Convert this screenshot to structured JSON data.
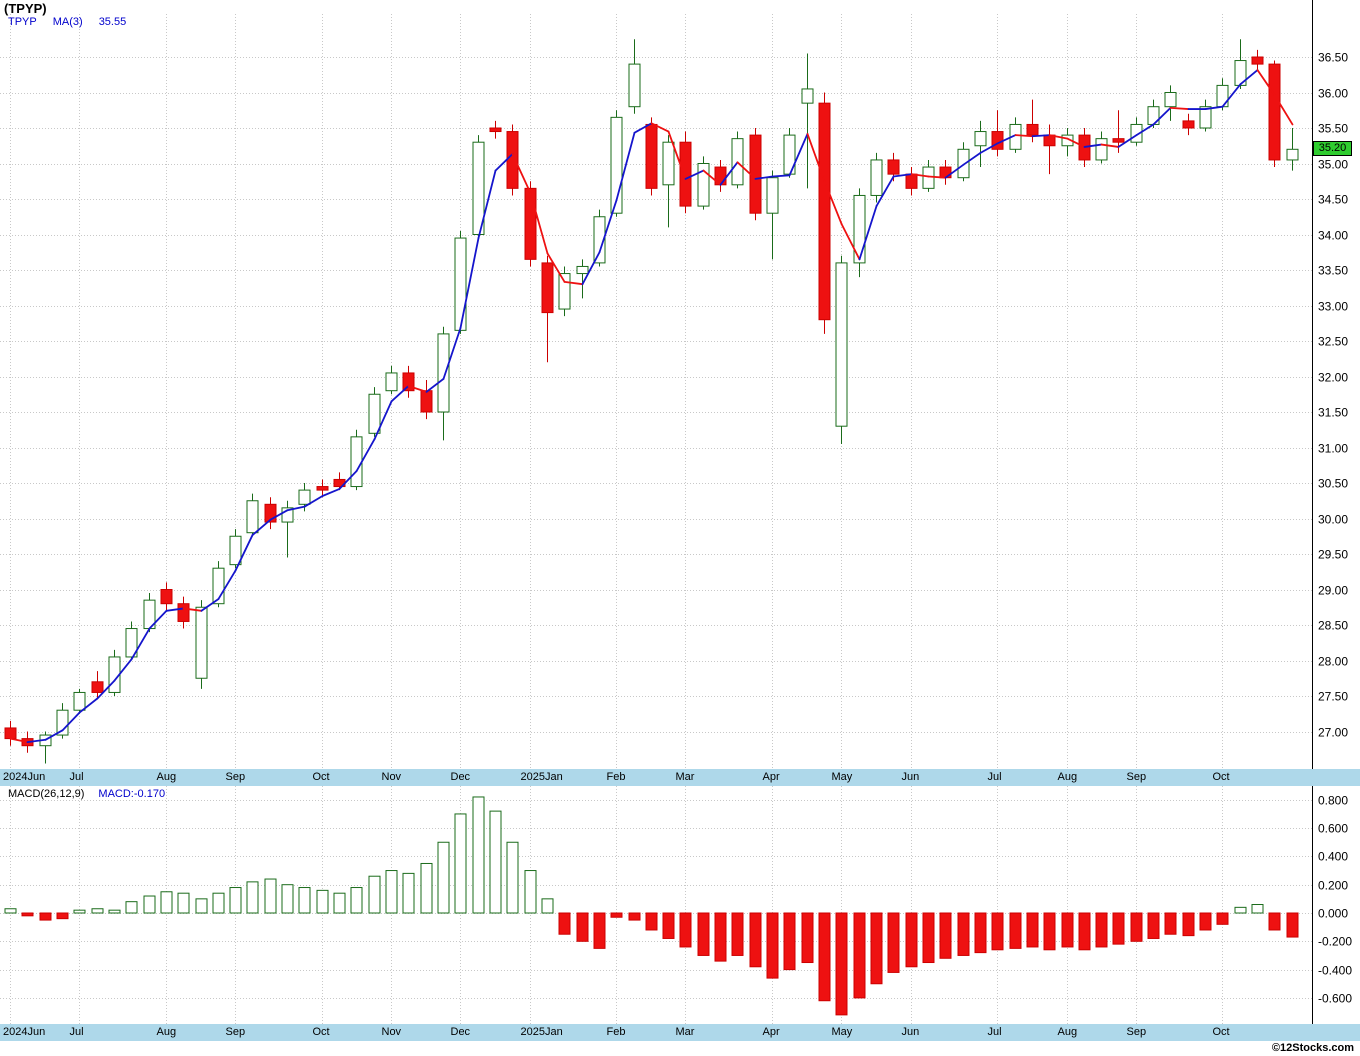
{
  "header": {
    "title": "(TPYP)",
    "symbol": "TPYP",
    "ma_label": "MA(3)",
    "ma_value": "35.55"
  },
  "macd_panel": {
    "label": "MACD(26,12,9)",
    "current": "MACD:-0.170"
  },
  "price_badge": {
    "value": "35.20",
    "color": "#2fcc2f"
  },
  "footer": {
    "credit": "©12Stocks.com"
  },
  "colors": {
    "up": "#1a6b1a",
    "down": "#ee1111",
    "down_stroke": "#cc0000",
    "ma_up": "#1515cc",
    "ma_down": "#ee1111",
    "grid": "#c8c8c8",
    "axis_strip": "#aed8ea",
    "frame": "#000000"
  },
  "chart_data": [
    {
      "type": "candlestick",
      "title": "TPYP weekly price with MA(3)",
      "ylabel": "Price (USD)",
      "ylim": [
        27.0,
        36.5
      ],
      "grid": true,
      "ma_period": 3,
      "last_price": 35.2,
      "y_ticks": [
        36.5,
        36.0,
        35.5,
        35.0,
        34.5,
        34.0,
        33.5,
        33.0,
        32.5,
        32.0,
        31.5,
        31.0,
        30.5,
        30.0,
        29.5,
        29.0,
        28.5,
        28.0,
        27.5,
        27.0
      ],
      "x_month_labels": [
        {
          "label": "2024Jun",
          "index": 0
        },
        {
          "label": "Jul",
          "index": 4
        },
        {
          "label": "Aug",
          "index": 9
        },
        {
          "label": "Sep",
          "index": 13
        },
        {
          "label": "Oct",
          "index": 18
        },
        {
          "label": "Nov",
          "index": 22
        },
        {
          "label": "Dec",
          "index": 26
        },
        {
          "label": "2025Jan",
          "index": 30
        },
        {
          "label": "Feb",
          "index": 35
        },
        {
          "label": "Mar",
          "index": 39
        },
        {
          "label": "Apr",
          "index": 44
        },
        {
          "label": "May",
          "index": 48
        },
        {
          "label": "Jun",
          "index": 52
        },
        {
          "label": "Jul",
          "index": 57
        },
        {
          "label": "Aug",
          "index": 61
        },
        {
          "label": "Sep",
          "index": 65
        },
        {
          "label": "Oct",
          "index": 70
        }
      ],
      "candles": [
        [
          27.05,
          27.15,
          26.8,
          26.9
        ],
        [
          26.9,
          27.0,
          26.7,
          26.8
        ],
        [
          26.8,
          27.0,
          26.55,
          26.95
        ],
        [
          26.95,
          27.4,
          26.9,
          27.3
        ],
        [
          27.3,
          27.6,
          27.25,
          27.55
        ],
        [
          27.7,
          27.85,
          27.45,
          27.55
        ],
        [
          27.55,
          28.15,
          27.5,
          28.05
        ],
        [
          28.05,
          28.55,
          28.0,
          28.45
        ],
        [
          28.45,
          28.95,
          28.4,
          28.85
        ],
        [
          29.0,
          29.1,
          28.7,
          28.8
        ],
        [
          28.8,
          28.9,
          28.45,
          28.55
        ],
        [
          27.75,
          28.85,
          27.6,
          28.75
        ],
        [
          28.8,
          29.4,
          28.75,
          29.3
        ],
        [
          29.35,
          29.85,
          29.3,
          29.75
        ],
        [
          29.8,
          30.35,
          29.75,
          30.25
        ],
        [
          30.2,
          30.3,
          29.85,
          29.95
        ],
        [
          29.95,
          30.25,
          29.45,
          30.15
        ],
        [
          30.2,
          30.5,
          30.1,
          30.4
        ],
        [
          30.45,
          30.55,
          30.3,
          30.4
        ],
        [
          30.55,
          30.65,
          30.4,
          30.45
        ],
        [
          30.45,
          31.25,
          30.4,
          31.15
        ],
        [
          31.2,
          31.85,
          31.15,
          31.75
        ],
        [
          31.8,
          32.15,
          31.75,
          32.05
        ],
        [
          32.05,
          32.15,
          31.7,
          31.8
        ],
        [
          31.8,
          31.95,
          31.4,
          31.5
        ],
        [
          31.5,
          32.7,
          31.1,
          32.6
        ],
        [
          32.65,
          34.05,
          32.6,
          33.95
        ],
        [
          34.0,
          35.4,
          33.95,
          35.3
        ],
        [
          35.5,
          35.6,
          35.35,
          35.45
        ],
        [
          35.45,
          35.55,
          34.55,
          34.65
        ],
        [
          34.65,
          34.75,
          33.55,
          33.65
        ],
        [
          33.6,
          33.7,
          32.2,
          32.9
        ],
        [
          32.95,
          33.55,
          32.85,
          33.45
        ],
        [
          33.45,
          33.65,
          33.1,
          33.55
        ],
        [
          33.6,
          34.35,
          33.55,
          34.25
        ],
        [
          34.3,
          35.75,
          34.25,
          35.65
        ],
        [
          35.8,
          36.75,
          35.7,
          36.4
        ],
        [
          35.55,
          35.65,
          34.55,
          34.65
        ],
        [
          34.7,
          35.4,
          34.1,
          35.3
        ],
        [
          35.3,
          35.45,
          34.3,
          34.4
        ],
        [
          34.4,
          35.1,
          34.35,
          35.0
        ],
        [
          34.95,
          35.05,
          34.6,
          34.7
        ],
        [
          34.7,
          35.45,
          34.65,
          35.35
        ],
        [
          35.4,
          35.5,
          34.2,
          34.3
        ],
        [
          34.3,
          34.9,
          33.65,
          34.8
        ],
        [
          34.85,
          35.5,
          34.8,
          35.4
        ],
        [
          35.85,
          36.55,
          34.65,
          36.05
        ],
        [
          35.85,
          36.0,
          32.6,
          32.8
        ],
        [
          31.3,
          33.7,
          31.05,
          33.6
        ],
        [
          33.6,
          34.65,
          33.4,
          34.55
        ],
        [
          34.55,
          35.15,
          34.45,
          35.05
        ],
        [
          35.05,
          35.15,
          34.75,
          34.85
        ],
        [
          34.85,
          34.95,
          34.55,
          34.65
        ],
        [
          34.65,
          35.05,
          34.6,
          34.95
        ],
        [
          34.95,
          35.05,
          34.7,
          34.8
        ],
        [
          34.8,
          35.3,
          34.75,
          35.2
        ],
        [
          35.25,
          35.6,
          34.95,
          35.45
        ],
        [
          35.45,
          35.75,
          35.1,
          35.2
        ],
        [
          35.2,
          35.65,
          35.15,
          35.55
        ],
        [
          35.55,
          35.9,
          35.3,
          35.4
        ],
        [
          35.4,
          35.55,
          34.85,
          35.25
        ],
        [
          35.25,
          35.5,
          35.1,
          35.4
        ],
        [
          35.4,
          35.5,
          34.95,
          35.05
        ],
        [
          35.05,
          35.45,
          35.0,
          35.35
        ],
        [
          35.35,
          35.75,
          35.15,
          35.3
        ],
        [
          35.3,
          35.65,
          35.25,
          35.55
        ],
        [
          35.55,
          35.9,
          35.5,
          35.8
        ],
        [
          35.8,
          36.1,
          35.6,
          36.0
        ],
        [
          35.6,
          35.7,
          35.4,
          35.5
        ],
        [
          35.5,
          35.9,
          35.45,
          35.8
        ],
        [
          35.8,
          36.2,
          35.75,
          36.1
        ],
        [
          36.1,
          36.75,
          36.05,
          36.45
        ],
        [
          36.5,
          36.6,
          36.3,
          36.4
        ],
        [
          36.4,
          36.45,
          34.95,
          35.05
        ],
        [
          35.05,
          35.5,
          34.9,
          35.2
        ]
      ]
    },
    {
      "type": "bar",
      "title": "MACD(26,12,9) histogram",
      "ylim": [
        -0.75,
        0.85
      ],
      "grid": true,
      "y_ticks": [
        0.8,
        0.6,
        0.4,
        0.2,
        0.0,
        -0.2,
        -0.4,
        -0.6
      ],
      "values": [
        0.03,
        -0.02,
        -0.05,
        -0.04,
        0.02,
        0.03,
        0.02,
        0.08,
        0.12,
        0.15,
        0.14,
        0.1,
        0.14,
        0.18,
        0.22,
        0.24,
        0.2,
        0.18,
        0.16,
        0.14,
        0.18,
        0.26,
        0.3,
        0.28,
        0.35,
        0.5,
        0.7,
        0.82,
        0.72,
        0.5,
        0.3,
        0.1,
        -0.15,
        -0.2,
        -0.25,
        -0.03,
        -0.05,
        -0.12,
        -0.18,
        -0.24,
        -0.3,
        -0.34,
        -0.3,
        -0.38,
        -0.46,
        -0.4,
        -0.35,
        -0.62,
        -0.72,
        -0.6,
        -0.5,
        -0.42,
        -0.38,
        -0.35,
        -0.32,
        -0.3,
        -0.28,
        -0.26,
        -0.25,
        -0.24,
        -0.26,
        -0.24,
        -0.26,
        -0.24,
        -0.22,
        -0.2,
        -0.18,
        -0.15,
        -0.16,
        -0.12,
        -0.08,
        0.04,
        0.06,
        -0.12,
        -0.17
      ]
    }
  ]
}
